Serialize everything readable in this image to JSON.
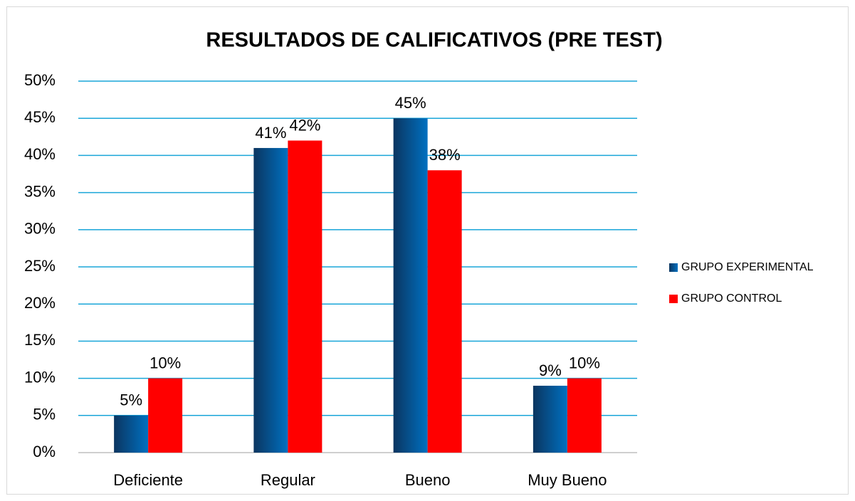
{
  "chart_data": {
    "type": "bar",
    "title": "RESULTADOS DE CALIFICATIVOS (PRE TEST)",
    "categories": [
      "Deficiente",
      "Regular",
      "Bueno",
      "Muy Bueno"
    ],
    "series": [
      {
        "name": "GRUPO EXPERIMENTAL",
        "color": "#0070c0",
        "values": [
          5,
          41,
          45,
          9
        ],
        "value_labels": [
          "5%",
          "41%",
          "45%",
          "9%"
        ]
      },
      {
        "name": "GRUPO CONTROL",
        "color": "#ff0000",
        "values": [
          10,
          42,
          38,
          10
        ],
        "value_labels": [
          "10%",
          "42%",
          "38%",
          "10%"
        ]
      }
    ],
    "ylim": [
      0,
      50
    ],
    "yticks": [
      {
        "value": 0,
        "label": "0%"
      },
      {
        "value": 5,
        "label": "5%"
      },
      {
        "value": 10,
        "label": "10%"
      },
      {
        "value": 15,
        "label": "15%"
      },
      {
        "value": 20,
        "label": "20%"
      },
      {
        "value": 25,
        "label": "25%"
      },
      {
        "value": 30,
        "label": "30%"
      },
      {
        "value": 35,
        "label": "35%"
      },
      {
        "value": 40,
        "label": "40%"
      },
      {
        "value": 45,
        "label": "45%"
      },
      {
        "value": 50,
        "label": "50%"
      }
    ],
    "grid": true,
    "legend": "right"
  }
}
